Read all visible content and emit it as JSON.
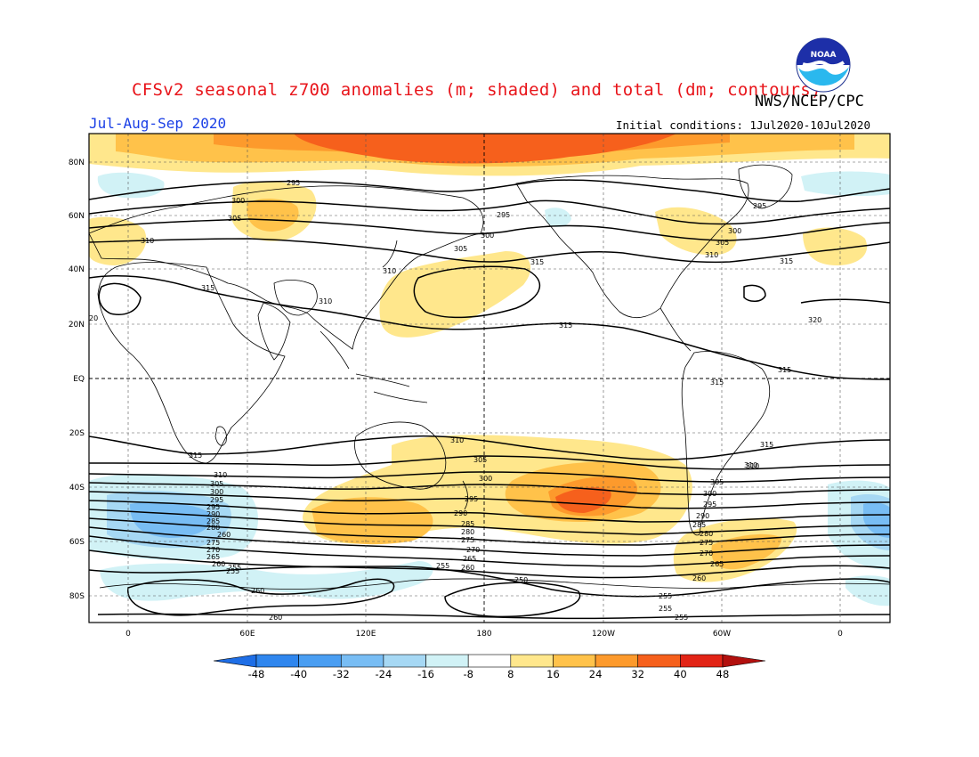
{
  "title": "CFSv2 seasonal z700 anomalies (m; shaded) and total (dm; contours)",
  "agency": "NWS/NCEP/CPC",
  "logo_text": "NOAA",
  "period": "Jul-Aug-Sep 2020",
  "initial_conditions": "Initial conditions: 1Jul2020-10Jul2020",
  "lat_labels": [
    "80N",
    "60N",
    "40N",
    "20N",
    "EQ",
    "20S",
    "40S",
    "60S",
    "80S"
  ],
  "lon_labels": [
    "0",
    "60E",
    "120E",
    "180",
    "120W",
    "60W",
    "0"
  ],
  "colorbar": {
    "ticks": [
      "-48",
      "-40",
      "-32",
      "-24",
      "-16",
      "-8",
      "8",
      "16",
      "24",
      "32",
      "40",
      "48"
    ],
    "colors": [
      "#1e6ee6",
      "#2f86ee",
      "#4a9ef2",
      "#78bdf4",
      "#a6d8f4",
      "#d1f2f6",
      "#ffffff",
      "#ffe78c",
      "#ffc24a",
      "#fd9a2c",
      "#f6601c",
      "#e22416",
      "#b2100e"
    ]
  },
  "contour_labels": [
    {
      "text": "295"
    },
    {
      "text": "300"
    },
    {
      "text": "305"
    },
    {
      "text": "310"
    },
    {
      "text": "315"
    },
    {
      "text": "310"
    },
    {
      "text": "315"
    },
    {
      "text": "310"
    },
    {
      "text": "295"
    },
    {
      "text": "300"
    },
    {
      "text": "305"
    },
    {
      "text": "315"
    },
    {
      "text": "295"
    },
    {
      "text": "300"
    },
    {
      "text": "305"
    },
    {
      "text": "310"
    },
    {
      "text": "315"
    },
    {
      "text": "320"
    },
    {
      "text": "315"
    },
    {
      "text": "315"
    },
    {
      "text": "20"
    },
    {
      "text": "310"
    },
    {
      "text": "315"
    },
    {
      "text": "310"
    },
    {
      "text": "305"
    },
    {
      "text": "300"
    },
    {
      "text": "295"
    },
    {
      "text": "310"
    },
    {
      "text": "305"
    },
    {
      "text": "300"
    },
    {
      "text": "295"
    },
    {
      "text": "290"
    },
    {
      "text": "285"
    },
    {
      "text": "280"
    },
    {
      "text": "275"
    },
    {
      "text": "270"
    },
    {
      "text": "265"
    },
    {
      "text": "260"
    },
    {
      "text": "255"
    },
    {
      "text": "260"
    },
    {
      "text": "260"
    },
    {
      "text": "255"
    },
    {
      "text": "250"
    },
    {
      "text": "255"
    },
    {
      "text": "255"
    },
    {
      "text": "315"
    },
    {
      "text": "310"
    },
    {
      "text": "305"
    },
    {
      "text": "300"
    },
    {
      "text": "295"
    },
    {
      "text": "290"
    },
    {
      "text": "285"
    },
    {
      "text": "280"
    },
    {
      "text": "275"
    },
    {
      "text": "270"
    },
    {
      "text": "265"
    },
    {
      "text": "260"
    },
    {
      "text": "255"
    },
    {
      "text": "260"
    },
    {
      "text": "255"
    },
    {
      "text": "295"
    },
    {
      "text": "290"
    },
    {
      "text": "285"
    },
    {
      "text": "280"
    },
    {
      "text": "275"
    },
    {
      "text": "270"
    },
    {
      "text": "265"
    },
    {
      "text": "260"
    }
  ]
}
